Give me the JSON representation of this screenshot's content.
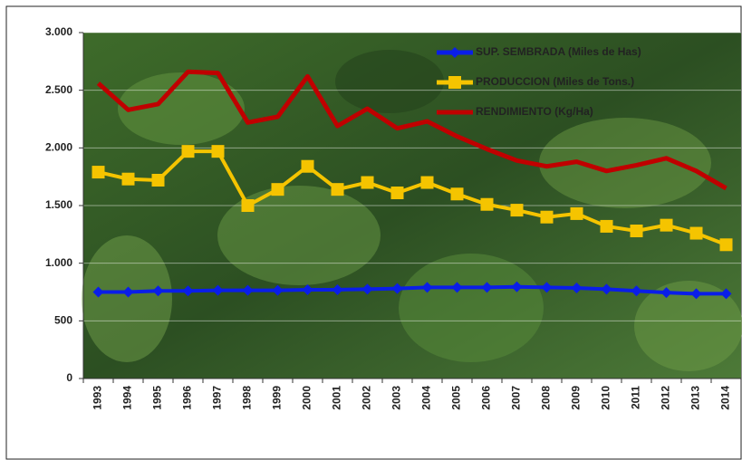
{
  "chart_data": {
    "type": "line",
    "categories": [
      "1993",
      "1994",
      "1995",
      "1996",
      "1997",
      "1998",
      "1999",
      "2000",
      "2001",
      "2002",
      "2003",
      "2004",
      "2005",
      "2006",
      "2007",
      "2008",
      "2009",
      "2010",
      "2011",
      "2012",
      "2013",
      "2014"
    ],
    "series": [
      {
        "name": "SUP. SEMBRADA (Miles de Has)",
        "color": "#0a1ee8",
        "marker": "diamond",
        "values": [
          750,
          750,
          760,
          760,
          765,
          765,
          765,
          770,
          770,
          775,
          780,
          790,
          790,
          790,
          795,
          790,
          785,
          775,
          760,
          745,
          735,
          735
        ]
      },
      {
        "name": "PRODUCCION (Miles de Tons.)",
        "color": "#f5c400",
        "marker": "square",
        "values": [
          1790,
          1730,
          1720,
          1970,
          1970,
          1500,
          1640,
          1840,
          1640,
          1700,
          1610,
          1700,
          1600,
          1510,
          1460,
          1400,
          1430,
          1320,
          1280,
          1330,
          1260,
          1160
        ]
      },
      {
        "name": "RENDIMIENTO (Kg/Ha)",
        "color": "#c00000",
        "marker": "none",
        "values": [
          2560,
          2330,
          2380,
          2660,
          2650,
          2220,
          2270,
          2620,
          2190,
          2340,
          2170,
          2230,
          2100,
          1990,
          1890,
          1840,
          1880,
          1800,
          1850,
          1910,
          1800,
          1650
        ]
      }
    ],
    "ylim": [
      0,
      3000
    ],
    "yticks": [
      0,
      500,
      {
        "value": 1000,
        "label": "1.000"
      },
      {
        "value": 1500,
        "label": "1.500"
      },
      {
        "value": 2000,
        "label": "2.000"
      },
      {
        "value": 2500,
        "label": "2.500"
      },
      {
        "value": 3000,
        "label": "3.000"
      }
    ],
    "grid": true,
    "legend": "top-right"
  }
}
